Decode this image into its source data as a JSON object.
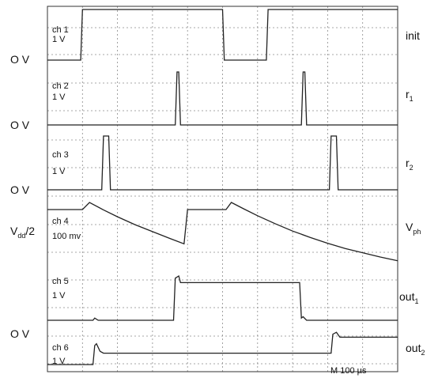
{
  "chart_data": {
    "type": "line",
    "timebase": "M 100 µs",
    "x_divisions": 10,
    "x_units": "divisions",
    "channels": [
      {
        "channel": "ch 1",
        "scale": "1 V",
        "signal": "init",
        "signal_sub": "",
        "color": "#222222",
        "points": [
          [
            0,
            0
          ],
          [
            0.95,
            0
          ],
          [
            1.0,
            1
          ],
          [
            5.0,
            1
          ],
          [
            5.05,
            0
          ],
          [
            6.25,
            0
          ],
          [
            6.3,
            1
          ],
          [
            10,
            1
          ]
        ]
      },
      {
        "channel": "ch 2",
        "scale": "1 V",
        "signal": "r",
        "signal_sub": "1",
        "color": "#222222",
        "points": [
          [
            0,
            0
          ],
          [
            3.65,
            0
          ],
          [
            3.7,
            1
          ],
          [
            3.75,
            1
          ],
          [
            3.8,
            0
          ],
          [
            7.25,
            0
          ],
          [
            7.3,
            1
          ],
          [
            7.35,
            1
          ],
          [
            7.4,
            0
          ],
          [
            10,
            0
          ]
        ]
      },
      {
        "channel": "ch 3",
        "scale": "1 V",
        "signal": "r",
        "signal_sub": "2",
        "color": "#222222",
        "points": [
          [
            0,
            0
          ],
          [
            1.55,
            0
          ],
          [
            1.6,
            1
          ],
          [
            1.75,
            1
          ],
          [
            1.8,
            0
          ],
          [
            8.05,
            0
          ],
          [
            8.1,
            1
          ],
          [
            8.25,
            1
          ],
          [
            8.3,
            0
          ],
          [
            10,
            0
          ]
        ]
      },
      {
        "channel": "ch 4",
        "scale": "100 mv",
        "signal": "V",
        "signal_sub": "ph",
        "color": "#222222",
        "points": [
          [
            0,
            0
          ],
          [
            1.0,
            0
          ],
          [
            1.2,
            1
          ],
          [
            1.6,
            0.86
          ],
          [
            2.0,
            0.73
          ],
          [
            2.5,
            0.58
          ],
          [
            3.0,
            0.45
          ],
          [
            3.5,
            0.32
          ],
          [
            3.9,
            0.22
          ],
          [
            4.0,
            0
          ],
          [
            5.1,
            0
          ],
          [
            5.25,
            1
          ],
          [
            5.6,
            0.88
          ],
          [
            6.0,
            0.75
          ],
          [
            6.5,
            0.6
          ],
          [
            7.0,
            0.46
          ],
          [
            7.5,
            0.34
          ],
          [
            8.0,
            0.23
          ],
          [
            8.5,
            0.13
          ],
          [
            9.0,
            0.05
          ],
          [
            9.5,
            -0.03
          ],
          [
            10,
            -0.1
          ]
        ]
      },
      {
        "channel": "ch 5",
        "scale": "1 V",
        "signal": "out",
        "signal_sub": "1",
        "color": "#222222",
        "points": [
          [
            0,
            0
          ],
          [
            1.3,
            0
          ],
          [
            1.35,
            0.05
          ],
          [
            1.45,
            0
          ],
          [
            3.6,
            0
          ],
          [
            3.65,
            0.95
          ],
          [
            3.75,
            1
          ],
          [
            3.8,
            0.85
          ],
          [
            7.2,
            0.85
          ],
          [
            7.25,
            0.05
          ],
          [
            7.3,
            0.08
          ],
          [
            7.4,
            0
          ],
          [
            10,
            0
          ]
        ]
      },
      {
        "channel": "ch 6",
        "scale": "1 V",
        "signal": "out",
        "signal_sub": "2",
        "color": "#222222",
        "points": [
          [
            0,
            0
          ],
          [
            1.3,
            0
          ],
          [
            1.35,
            0.5
          ],
          [
            1.4,
            0.55
          ],
          [
            1.5,
            0.35
          ],
          [
            1.6,
            0.3
          ],
          [
            8.1,
            0.3
          ],
          [
            8.15,
            0.8
          ],
          [
            8.25,
            0.85
          ],
          [
            8.35,
            0.72
          ],
          [
            10,
            0.72
          ]
        ]
      }
    ],
    "zero_markers": [
      "O V",
      "O V",
      "O V",
      "O V"
    ],
    "vdd_marker": "V",
    "vdd_sub": "dd",
    "vdd_tail": "/2",
    "grid": true
  }
}
